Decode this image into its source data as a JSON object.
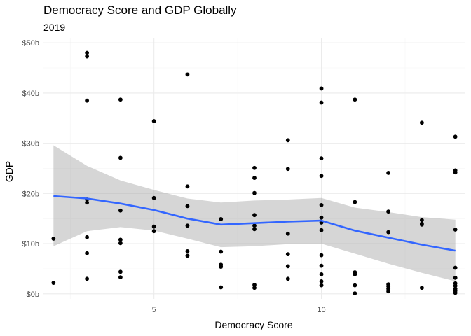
{
  "chart_data": {
    "type": "scatter",
    "title": "Democracy Score and GDP Globally",
    "subtitle": "2019",
    "xlabel": "Democracy Score",
    "ylabel": "GDP",
    "xlim": [
      1.7,
      14.3
    ],
    "ylim": [
      -1.0,
      51.0
    ],
    "x_ticks": [
      5,
      10
    ],
    "x_minor_ticks": [
      2.5,
      7.5,
      12.5
    ],
    "y_ticks": [
      {
        "value": 0,
        "label": "$0b"
      },
      {
        "value": 10,
        "label": "$10b"
      },
      {
        "value": 20,
        "label": "$20b"
      },
      {
        "value": 30,
        "label": "$30b"
      },
      {
        "value": 40,
        "label": "$40b"
      },
      {
        "value": 50,
        "label": "$50b"
      }
    ],
    "y_minor_ticks": [
      5,
      15,
      25,
      35,
      45
    ],
    "grid": true,
    "point_color": "#000000",
    "smooth_color": "#3366FF",
    "band_color": "#999999",
    "points": [
      [
        2,
        11.0
      ],
      [
        2,
        2.2
      ],
      [
        3,
        48.0
      ],
      [
        3,
        47.3
      ],
      [
        3,
        38.5
      ],
      [
        3,
        18.8
      ],
      [
        3,
        18.2
      ],
      [
        3,
        11.3
      ],
      [
        3,
        8.1
      ],
      [
        3,
        3.0
      ],
      [
        4,
        38.7
      ],
      [
        4,
        27.1
      ],
      [
        4,
        16.6
      ],
      [
        4,
        10.8
      ],
      [
        4,
        10.1
      ],
      [
        4,
        4.4
      ],
      [
        4,
        3.3
      ],
      [
        5,
        34.4
      ],
      [
        5,
        19.1
      ],
      [
        5,
        13.4
      ],
      [
        5,
        12.5
      ],
      [
        6,
        43.7
      ],
      [
        6,
        21.4
      ],
      [
        6,
        17.5
      ],
      [
        6,
        13.6
      ],
      [
        6,
        8.5
      ],
      [
        6,
        7.6
      ],
      [
        7,
        14.9
      ],
      [
        7,
        8.4
      ],
      [
        7,
        5.8
      ],
      [
        7,
        5.4
      ],
      [
        7,
        1.3
      ],
      [
        8,
        25.1
      ],
      [
        8,
        23.1
      ],
      [
        8,
        20.1
      ],
      [
        8,
        15.7
      ],
      [
        8,
        13.6
      ],
      [
        8,
        12.9
      ],
      [
        8,
        1.8
      ],
      [
        8,
        1.2
      ],
      [
        9,
        30.6
      ],
      [
        9,
        24.9
      ],
      [
        9,
        12.0
      ],
      [
        9,
        7.9
      ],
      [
        9,
        5.5
      ],
      [
        9,
        3.0
      ],
      [
        10,
        40.9
      ],
      [
        10,
        38.1
      ],
      [
        10,
        27.0
      ],
      [
        10,
        23.5
      ],
      [
        10,
        17.7
      ],
      [
        10,
        15.2
      ],
      [
        10,
        14.2
      ],
      [
        10,
        12.7
      ],
      [
        10,
        7.7
      ],
      [
        10,
        5.6
      ],
      [
        10,
        3.9
      ],
      [
        10,
        2.5
      ],
      [
        10,
        1.7
      ],
      [
        11,
        38.7
      ],
      [
        11,
        18.3
      ],
      [
        11,
        4.3
      ],
      [
        11,
        3.9
      ],
      [
        11,
        1.7
      ],
      [
        11,
        0.1
      ],
      [
        12,
        24.1
      ],
      [
        12,
        16.4
      ],
      [
        12,
        12.3
      ],
      [
        12,
        1.9
      ],
      [
        12,
        1.5
      ],
      [
        12,
        1.0
      ],
      [
        12,
        0.5
      ],
      [
        13,
        34.1
      ],
      [
        13,
        14.7
      ],
      [
        13,
        14.0
      ],
      [
        13,
        13.8
      ],
      [
        13,
        1.2
      ],
      [
        14,
        31.3
      ],
      [
        14,
        24.6
      ],
      [
        14,
        24.2
      ],
      [
        14,
        12.8
      ],
      [
        14,
        5.2
      ],
      [
        14,
        3.2
      ],
      [
        14,
        2.1
      ],
      [
        14,
        1.6
      ],
      [
        14,
        1.0
      ],
      [
        14,
        0.6
      ],
      [
        14,
        0.2
      ]
    ],
    "smooth": {
      "x": [
        2,
        3,
        4,
        5,
        6,
        7,
        8,
        9,
        10,
        11,
        12,
        13,
        14
      ],
      "y": [
        19.5,
        19.0,
        18.0,
        16.7,
        15.0,
        13.8,
        14.1,
        14.4,
        14.6,
        12.6,
        11.2,
        9.8,
        8.6
      ],
      "lower": [
        9.5,
        12.5,
        13.3,
        12.6,
        11.0,
        9.3,
        9.5,
        9.9,
        10.0,
        8.0,
        6.0,
        4.2,
        2.5
      ],
      "upper": [
        29.6,
        25.5,
        22.6,
        20.7,
        19.0,
        18.2,
        18.6,
        18.8,
        19.1,
        17.2,
        16.3,
        15.3,
        14.8
      ]
    }
  }
}
